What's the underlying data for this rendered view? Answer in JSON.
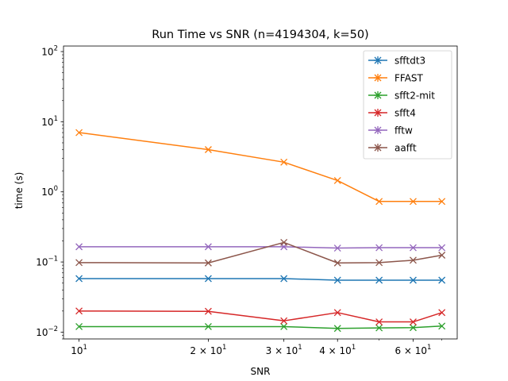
{
  "chart_data": {
    "type": "line",
    "title": "Run Time vs SNR (n=4194304, k=50)",
    "xlabel": "SNR",
    "ylabel": "time (s)",
    "xscale": "log",
    "yscale": "log",
    "xlim": [
      9.2,
      76
    ],
    "ylim": [
      0.008,
      120
    ],
    "x_ticks": [
      {
        "value": 10,
        "base": "10",
        "exp": "1"
      },
      {
        "value": 20,
        "base": "2 × 10",
        "exp": "1"
      },
      {
        "value": 30,
        "base": "3 × 10",
        "exp": "1"
      },
      {
        "value": 40,
        "base": "4 × 10",
        "exp": "1"
      },
      {
        "value": 60,
        "base": "6 × 10",
        "exp": "1"
      }
    ],
    "y_ticks": [
      {
        "value": 0.01,
        "base": "10",
        "exp": "−2"
      },
      {
        "value": 0.1,
        "base": "10",
        "exp": "−1"
      },
      {
        "value": 1,
        "base": "10",
        "exp": "0"
      },
      {
        "value": 10,
        "base": "10",
        "exp": "1"
      },
      {
        "value": 100,
        "base": "10",
        "exp": "2"
      }
    ],
    "x": [
      10,
      20,
      30,
      40,
      50,
      60,
      70
    ],
    "legend_position": "top-right",
    "series": [
      {
        "name": "sfftdt3",
        "color": "#1f77b4",
        "marker": "plus",
        "values": [
          0.058,
          0.058,
          0.058,
          0.055,
          0.055,
          0.055,
          0.055
        ]
      },
      {
        "name": "FFAST",
        "color": "#ff7f0e",
        "marker": "plus",
        "values": [
          7.0,
          4.0,
          2.65,
          1.45,
          0.73,
          0.73,
          0.73
        ]
      },
      {
        "name": "sfft2-mit",
        "color": "#2ca02c",
        "marker": "plus",
        "values": [
          0.012,
          0.012,
          0.012,
          0.0113,
          0.0115,
          0.0116,
          0.0122
        ]
      },
      {
        "name": "sfft4",
        "color": "#d62728",
        "marker": "plus",
        "values": [
          0.02,
          0.0198,
          0.0145,
          0.019,
          0.014,
          0.014,
          0.019
        ]
      },
      {
        "name": "fftw",
        "color": "#9467bd",
        "marker": "plus",
        "values": [
          0.165,
          0.165,
          0.165,
          0.158,
          0.16,
          0.16,
          0.16
        ]
      },
      {
        "name": "aafft",
        "color": "#8c564b",
        "marker": "plus",
        "values": [
          0.098,
          0.097,
          0.19,
          0.097,
          0.098,
          0.106,
          0.125
        ]
      }
    ]
  }
}
